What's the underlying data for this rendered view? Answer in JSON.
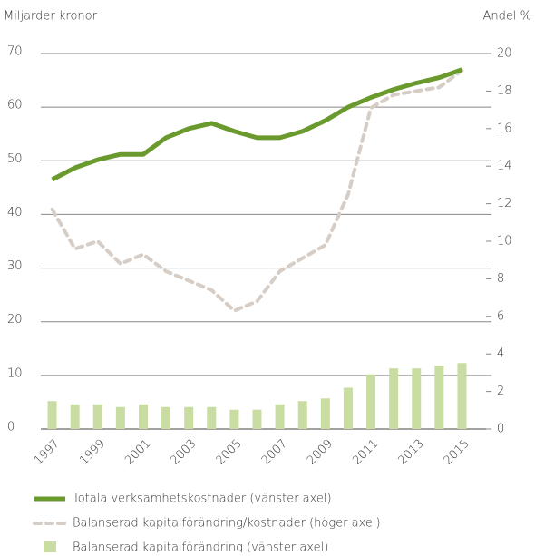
{
  "chart_data": {
    "type": "combo",
    "y_label": "Miljarder kronor",
    "y2_label": "Andel %",
    "categories": [
      "1997",
      null,
      "1999",
      null,
      "2001",
      null,
      "2003",
      null,
      "2005",
      null,
      "2007",
      null,
      "2009",
      null,
      "2011",
      null,
      "2013",
      null,
      "2015"
    ],
    "series": [
      {
        "name": "Totala verksamhetskostnader (vänster axel)",
        "type": "line",
        "axis": "y",
        "color": "#6a9a2e",
        "values": [
          46.5,
          48.7,
          50.2,
          51.2,
          51.2,
          54.3,
          56,
          57,
          55.5,
          54.3,
          54.3,
          55.5,
          57.5,
          60,
          61.8,
          63.3,
          64.5,
          65.5,
          67
        ]
      },
      {
        "name": "Balanserad kapitalförändring/kostnader (höger axel)",
        "type": "line",
        "dashed": true,
        "axis": "y2",
        "color": "#d6cec6",
        "values": [
          11.7,
          9.6,
          10,
          8.8,
          9.3,
          8.4,
          7.9,
          7.4,
          6.3,
          6.8,
          8.4,
          9.1,
          9.8,
          12.5,
          17.1,
          17.8,
          18,
          18.2,
          19.1
        ]
      },
      {
        "name": "Balanserad kapitalförändring (vänster axel)",
        "type": "bar",
        "axis": "y",
        "color": "#c9dca2",
        "values": [
          5.2,
          4.6,
          4.6,
          4.1,
          4.6,
          4.1,
          4.1,
          4.1,
          3.6,
          3.6,
          4.6,
          5.2,
          5.7,
          7.7,
          10.2,
          11.3,
          11.3,
          11.8,
          12.3
        ]
      }
    ],
    "ylim": [
      0,
      70
    ],
    "yticks": [
      0,
      10,
      20,
      30,
      40,
      50,
      60,
      70
    ],
    "y2lim": [
      0,
      20
    ],
    "y2ticks": [
      0,
      2,
      4,
      6,
      8,
      10,
      12,
      14,
      16,
      18,
      20
    ],
    "grid": true
  }
}
